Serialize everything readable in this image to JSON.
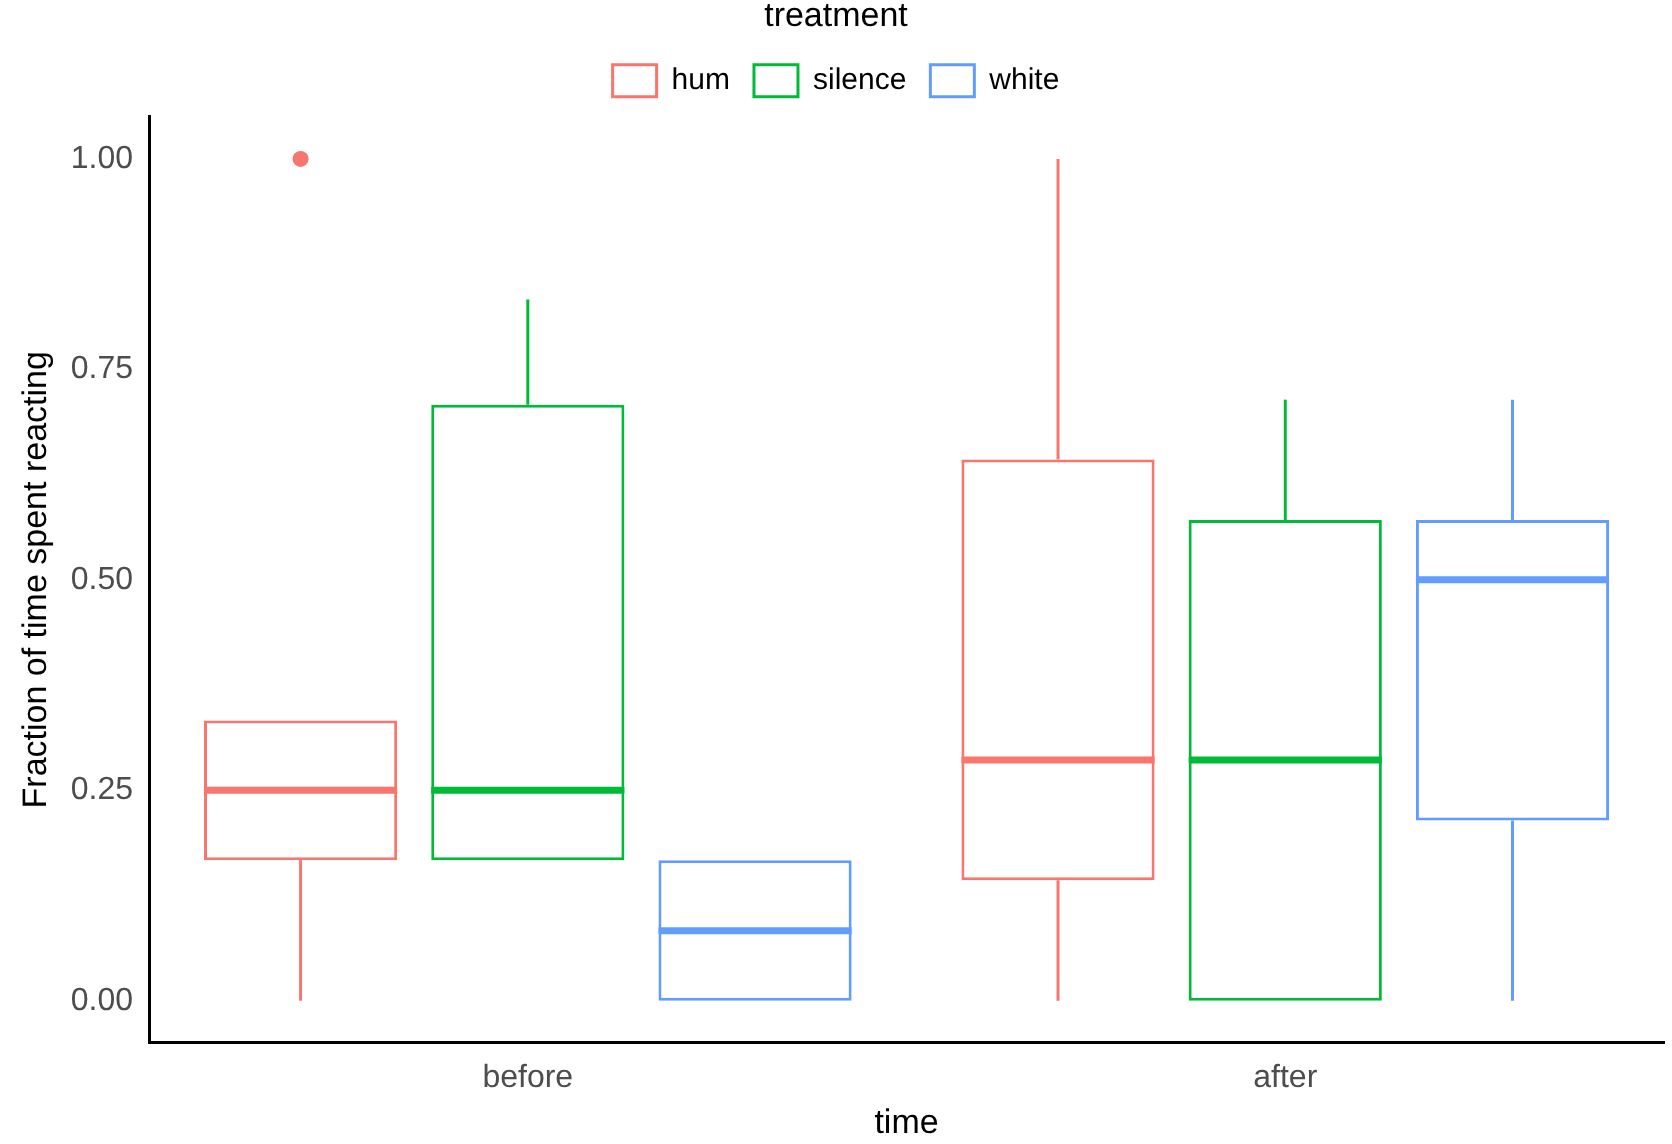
{
  "chart_data": {
    "type": "box",
    "xlabel": "time",
    "ylabel": "Fraction of time spent reacting",
    "legend_title": "treatment",
    "legend": "top",
    "grid": false,
    "categories": [
      "before",
      "after"
    ],
    "ylim": [
      -0.05,
      1.05
    ],
    "yticks": [
      {
        "value": 0,
        "label": "0.00"
      },
      {
        "value": 0.25,
        "label": "0.25"
      },
      {
        "value": 0.5,
        "label": "0.50"
      },
      {
        "value": 0.75,
        "label": "0.75"
      },
      {
        "value": 1,
        "label": "1.00"
      }
    ],
    "series": [
      {
        "name": "hum",
        "color": "#f8766d",
        "boxes": [
          {
            "low": 0,
            "q1": 0.167,
            "median": 0.25,
            "q3": 0.333,
            "high": 0.333,
            "outliers": [
              1
            ]
          },
          {
            "low": 0,
            "q1": 0.143,
            "median": 0.286,
            "q3": 0.643,
            "high": 1
          }
        ]
      },
      {
        "name": "silence",
        "color": "#00ba38",
        "boxes": [
          {
            "low": 0.167,
            "q1": 0.167,
            "median": 0.25,
            "q3": 0.708,
            "high": 0.833
          },
          {
            "low": 0,
            "q1": 0,
            "median": 0.286,
            "q3": 0.571,
            "high": 0.714
          }
        ]
      },
      {
        "name": "white",
        "color": "#619cff",
        "boxes": [
          {
            "low": 0,
            "q1": 0,
            "median": 0.083,
            "q3": 0.167,
            "high": 0.167
          },
          {
            "low": 0,
            "q1": 0.214,
            "median": 0.5,
            "q3": 0.571,
            "high": 0.714
          }
        ]
      }
    ]
  }
}
